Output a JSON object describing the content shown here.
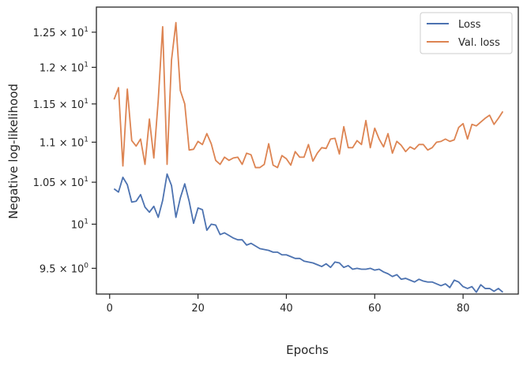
{
  "chart_data": {
    "type": "line",
    "xlabel": "Epochs",
    "ylabel": "Negative log-likelihood",
    "yscale": "log",
    "xlim": [
      -3,
      92.5
    ],
    "ylim": [
      9.22,
      12.87
    ],
    "xticks": [
      0,
      20,
      40,
      60,
      80
    ],
    "yticks": [
      {
        "value": 9.5,
        "mantissa": "9.5",
        "exp": "0"
      },
      {
        "value": 10.0,
        "mantissa": "",
        "exp": "1"
      },
      {
        "value": 10.5,
        "mantissa": "1.05",
        "exp": "1"
      },
      {
        "value": 11.0,
        "mantissa": "1.1",
        "exp": "1"
      },
      {
        "value": 11.5,
        "mantissa": "1.15",
        "exp": "1"
      },
      {
        "value": 12.0,
        "mantissa": "1.2",
        "exp": "1"
      },
      {
        "value": 12.5,
        "mantissa": "1.25",
        "exp": "1"
      }
    ],
    "grid": false,
    "legend": "top-right",
    "x": [
      1,
      2,
      3,
      4,
      5,
      6,
      7,
      8,
      9,
      10,
      11,
      12,
      13,
      14,
      15,
      16,
      17,
      18,
      19,
      20,
      21,
      22,
      23,
      24,
      25,
      26,
      27,
      28,
      29,
      30,
      31,
      32,
      33,
      34,
      35,
      36,
      37,
      38,
      39,
      40,
      41,
      42,
      43,
      44,
      45,
      46,
      47,
      48,
      49,
      50,
      51,
      52,
      53,
      54,
      55,
      56,
      57,
      58,
      59,
      60,
      61,
      62,
      63,
      64,
      65,
      66,
      67,
      68,
      69,
      70,
      71,
      72,
      73,
      74,
      75,
      76,
      77,
      78,
      79,
      80,
      81,
      82,
      83,
      84,
      85,
      86,
      87,
      88,
      89
    ],
    "series": [
      {
        "name": "Loss",
        "color": "#4c72b0",
        "values": [
          10.42,
          10.38,
          10.56,
          10.47,
          10.26,
          10.27,
          10.35,
          10.2,
          10.14,
          10.21,
          10.08,
          10.28,
          10.6,
          10.46,
          10.08,
          10.31,
          10.48,
          10.27,
          10.01,
          10.19,
          10.17,
          9.93,
          10.0,
          9.99,
          9.88,
          9.9,
          9.87,
          9.84,
          9.82,
          9.82,
          9.76,
          9.78,
          9.75,
          9.72,
          9.71,
          9.7,
          9.68,
          9.68,
          9.65,
          9.65,
          9.63,
          9.61,
          9.61,
          9.58,
          9.57,
          9.56,
          9.54,
          9.52,
          9.55,
          9.51,
          9.57,
          9.56,
          9.51,
          9.53,
          9.49,
          9.5,
          9.49,
          9.49,
          9.5,
          9.48,
          9.49,
          9.46,
          9.44,
          9.41,
          9.43,
          9.38,
          9.39,
          9.37,
          9.35,
          9.38,
          9.36,
          9.35,
          9.35,
          9.33,
          9.31,
          9.33,
          9.29,
          9.37,
          9.35,
          9.3,
          9.28,
          9.3,
          9.24,
          9.32,
          9.28,
          9.28,
          9.25,
          9.28,
          9.24
        ]
      },
      {
        "name": "Val. loss",
        "color": "#dd8452",
        "values": [
          11.56,
          11.72,
          10.7,
          11.7,
          11.02,
          10.95,
          11.04,
          10.72,
          11.3,
          10.8,
          11.55,
          12.58,
          10.72,
          12.1,
          12.64,
          11.68,
          11.5,
          10.9,
          10.91,
          11.01,
          10.97,
          11.11,
          10.98,
          10.77,
          10.72,
          10.81,
          10.77,
          10.8,
          10.81,
          10.72,
          10.86,
          10.84,
          10.68,
          10.68,
          10.72,
          10.98,
          10.71,
          10.68,
          10.83,
          10.79,
          10.71,
          10.88,
          10.81,
          10.81,
          10.97,
          10.76,
          10.86,
          10.93,
          10.92,
          11.04,
          11.05,
          10.85,
          11.2,
          10.93,
          10.93,
          11.02,
          10.97,
          11.28,
          10.93,
          11.18,
          11.04,
          10.94,
          11.11,
          10.86,
          11.01,
          10.96,
          10.88,
          10.94,
          10.91,
          10.97,
          10.97,
          10.9,
          10.93,
          11.0,
          11.01,
          11.04,
          11.01,
          11.03,
          11.19,
          11.24,
          11.04,
          11.23,
          11.21,
          11.26,
          11.31,
          11.35,
          11.23,
          11.31,
          11.4
        ]
      }
    ]
  }
}
